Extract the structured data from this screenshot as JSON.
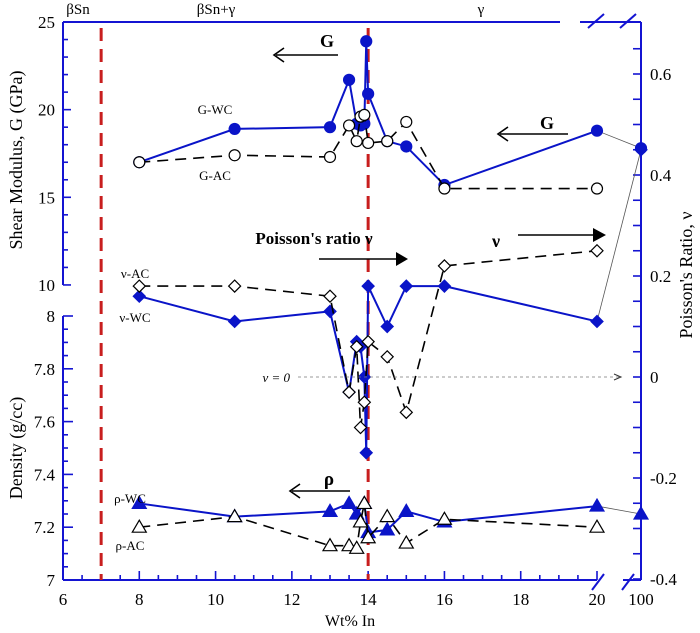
{
  "chart_data": {
    "type": "line",
    "title": "",
    "xlabel": "Wt% In",
    "ylabel_left_top": "Shear Modulus, G (GPa)",
    "ylabel_left_bottom": "Density (g/cc)",
    "ylabel_right": "Poisson's Ratio, ν",
    "x_ticks": [
      "6",
      "8",
      "10",
      "12",
      "14",
      "16",
      "18",
      "20",
      "100"
    ],
    "g_ticks": [
      "25",
      "20",
      "15",
      "10"
    ],
    "rho_ticks": [
      "8",
      "7.8",
      "7.6",
      "7.4",
      "7.2",
      "7"
    ],
    "nu_ticks": [
      "0.6",
      "0.4",
      "0.2",
      "0",
      "-0.2",
      "-0.4"
    ],
    "xlim": [
      6,
      20
    ],
    "x_break": "20 // 100",
    "g_ylim": [
      10,
      25
    ],
    "rho_ylim": [
      7,
      8
    ],
    "nu_ylim": [
      -0.4,
      0.7
    ],
    "phase_regions": [
      {
        "label": "βSn"
      },
      {
        "label": "βSn+γ"
      },
      {
        "label": "γ"
      }
    ],
    "phase_boundaries_wt_pct": [
      7,
      14
    ],
    "annotations": {
      "g_arrow_top": "G",
      "g_arrow_right": "G",
      "nu_arrow_main": "Poisson's ratio ν",
      "nu_arrow_right": "ν",
      "rho_arrow": "ρ",
      "nu_zero": "ν = 0"
    },
    "series": [
      {
        "name": "G-WC",
        "axis": "G",
        "marker": "filled-circle",
        "style": "solid",
        "color": "#0a14c8",
        "x": [
          8,
          10.5,
          13,
          13.5,
          13.7,
          13.8,
          13.9,
          13.95,
          14,
          14.5,
          15,
          16,
          20,
          100
        ],
        "values": [
          17.0,
          18.9,
          19.0,
          21.7,
          19.2,
          19.1,
          19.2,
          23.9,
          20.9,
          18.2,
          17.9,
          15.7,
          18.8,
          17.8
        ]
      },
      {
        "name": "G-AC",
        "axis": "G",
        "marker": "open-circle",
        "style": "dashed",
        "color": "#000000",
        "x": [
          8,
          10.5,
          13,
          13.5,
          13.7,
          13.8,
          13.9,
          14,
          14.5,
          15,
          16,
          20
        ],
        "values": [
          17.0,
          17.4,
          17.3,
          19.1,
          18.2,
          19.6,
          19.7,
          18.1,
          18.2,
          19.3,
          15.5,
          15.5
        ]
      },
      {
        "name": "ν-WC",
        "axis": "ν",
        "marker": "filled-diamond",
        "style": "solid",
        "color": "#0a14c8",
        "x": [
          8,
          10.5,
          13,
          13.5,
          13.7,
          13.8,
          13.9,
          13.95,
          14,
          14.5,
          15,
          16,
          20,
          100
        ],
        "values": [
          0.16,
          0.11,
          0.13,
          -0.03,
          0.07,
          0.06,
          0.0,
          -0.15,
          0.18,
          0.1,
          0.18,
          0.18,
          0.11,
          0.45
        ]
      },
      {
        "name": "ν-AC",
        "axis": "ν",
        "marker": "open-diamond",
        "style": "dashed",
        "color": "#000000",
        "x": [
          8,
          10.5,
          13,
          13.5,
          13.7,
          13.8,
          13.9,
          14,
          14.5,
          15,
          16,
          20
        ],
        "values": [
          0.18,
          0.18,
          0.16,
          -0.03,
          0.06,
          -0.1,
          -0.05,
          0.07,
          0.04,
          -0.07,
          0.22,
          0.25
        ]
      },
      {
        "name": "ρ-WC",
        "axis": "ρ",
        "marker": "filled-triangle",
        "style": "solid",
        "color": "#0a14c8",
        "x": [
          8,
          10.5,
          13,
          13.5,
          13.7,
          13.9,
          14,
          14.5,
          15,
          16,
          20,
          100
        ],
        "values": [
          7.29,
          7.24,
          7.26,
          7.29,
          7.25,
          7.29,
          7.18,
          7.19,
          7.26,
          7.22,
          7.28,
          7.25
        ]
      },
      {
        "name": "ρ-AC",
        "axis": "ρ",
        "marker": "open-triangle",
        "style": "dashed",
        "color": "#000000",
        "x": [
          8,
          10.5,
          13,
          13.5,
          13.7,
          13.8,
          13.9,
          14,
          14.5,
          15,
          16,
          20
        ],
        "values": [
          7.2,
          7.24,
          7.13,
          7.13,
          7.12,
          7.22,
          7.29,
          7.16,
          7.24,
          7.14,
          7.23,
          7.2
        ]
      }
    ],
    "grid": false,
    "legend_position": "inline labels"
  },
  "labels": {
    "gwc": "G-WC",
    "gac": "G-AC",
    "nuac": "ν-AC",
    "nuwc": "ν-WC",
    "rhowc": "ρ-WC",
    "rhoac": "ρ-AC"
  },
  "colors": {
    "axis": "#1414d2",
    "wc": "#0a14c8",
    "ac": "#000000",
    "boundary": "#c81e1e"
  }
}
